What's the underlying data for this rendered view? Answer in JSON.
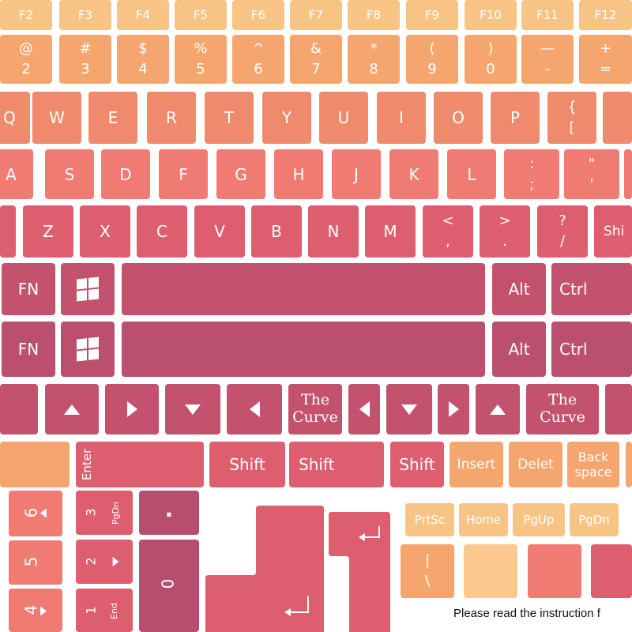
{
  "colors": {
    "light_orange": "#f8c485",
    "orange": "#f5a66f",
    "coral": "#f08a6d",
    "salmon": "#ef7b73",
    "pink": "#dd5f6f",
    "rose": "#c9546c",
    "berry": "#b84e6e",
    "pale": "#fbc98d"
  },
  "function_row": [
    "F2",
    "F3",
    "F4",
    "F5",
    "F6",
    "F7",
    "F8",
    "F9",
    "F10",
    "F11",
    "F12"
  ],
  "number_row": [
    {
      "top": "@",
      "bottom": "2"
    },
    {
      "top": "#",
      "bottom": "3"
    },
    {
      "top": "$",
      "bottom": "4"
    },
    {
      "top": "%",
      "bottom": "5"
    },
    {
      "top": "^",
      "bottom": "6"
    },
    {
      "top": "&",
      "bottom": "7"
    },
    {
      "top": "*",
      "bottom": "8"
    },
    {
      "top": "(",
      "bottom": "9"
    },
    {
      "top": ")",
      "bottom": "0"
    },
    {
      "top": "—",
      "bottom": "-"
    },
    {
      "top": "+",
      "bottom": "="
    }
  ],
  "qwerty_row": [
    "Q",
    "W",
    "E",
    "R",
    "T",
    "Y",
    "U",
    "I",
    "O",
    "P"
  ],
  "qwerty_brace": {
    "top": "{",
    "bottom": "["
  },
  "asdf_row": [
    "A",
    "S",
    "D",
    "F",
    "G",
    "H",
    "J",
    "K",
    "L"
  ],
  "asdf_punct": [
    {
      "top": ":",
      "bottom": ";"
    },
    {
      "top": "\"",
      "bottom": "'"
    }
  ],
  "zxcv_row": [
    "Z",
    "X",
    "C",
    "V",
    "B",
    "N",
    "M"
  ],
  "zxcv_punct": [
    {
      "top": "<",
      "bottom": ","
    },
    {
      "top": ">",
      "bottom": "."
    },
    {
      "top": "?",
      "bottom": "/"
    }
  ],
  "shift_partial": "Shi",
  "mod_row": {
    "fn": "FN",
    "alt": "Alt",
    "ctrl": "Ctrl"
  },
  "curve_label": {
    "line1": "The",
    "line2": "Curve"
  },
  "mid_row": {
    "enter": "Enter",
    "shift": "Shift"
  },
  "edit_keys": {
    "insert": "Insert",
    "delete": "Delet",
    "backspace_1": "Back",
    "backspace_2": "space"
  },
  "nav_keys": [
    "PrtSc",
    "Home",
    "PgUp",
    "PgDn"
  ],
  "numpad_right": [
    {
      "num": "6"
    },
    {
      "num": "5"
    },
    {
      "num": "4"
    }
  ],
  "numpad_mid": [
    {
      "num": "3",
      "sub": "PgDn"
    },
    {
      "num": "2"
    },
    {
      "num": "1",
      "sub": "End"
    }
  ],
  "numpad_dot": ".",
  "numpad_zero": "0",
  "pipe_key": {
    "top": "|",
    "bottom": "\\"
  },
  "instruction_note": "Please read the instruction f"
}
